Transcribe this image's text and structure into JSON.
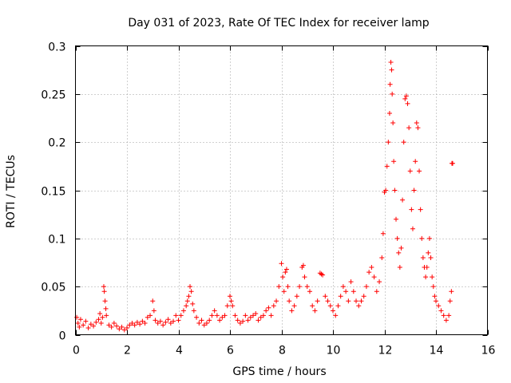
{
  "chart_data": {
    "type": "scatter",
    "title": "Day 031 of 2023, Rate Of TEC Index for receiver lamp",
    "xlabel": "GPS time / hours",
    "ylabel": "ROTI / TECUs",
    "xlim": [
      0,
      16
    ],
    "ylim": [
      0,
      0.3
    ],
    "xticks": [
      0,
      2,
      4,
      6,
      8,
      10,
      12,
      14,
      16
    ],
    "yticks": [
      0,
      0.05,
      0.1,
      0.15,
      0.2,
      0.25,
      0.3
    ],
    "xtick_labels": [
      "0",
      "2",
      "4",
      "6",
      "8",
      "10",
      "12",
      "14",
      "16"
    ],
    "ytick_labels": [
      "0",
      "0.05",
      "0.1",
      "0.15",
      "0.2",
      "0.25",
      "0.3"
    ],
    "grid": true,
    "marker": "+",
    "color": "#ff0000",
    "series": [
      {
        "name": "ROTI",
        "points": [
          [
            0.05,
            0.018
          ],
          [
            0.1,
            0.012
          ],
          [
            0.15,
            0.008
          ],
          [
            0.2,
            0.016
          ],
          [
            0.3,
            0.01
          ],
          [
            0.4,
            0.014
          ],
          [
            0.5,
            0.007
          ],
          [
            0.6,
            0.011
          ],
          [
            0.7,
            0.009
          ],
          [
            0.8,
            0.013
          ],
          [
            0.9,
            0.016
          ],
          [
            0.95,
            0.022
          ],
          [
            1.0,
            0.012
          ],
          [
            1.05,
            0.018
          ],
          [
            1.1,
            0.05
          ],
          [
            1.12,
            0.045
          ],
          [
            1.15,
            0.035
          ],
          [
            1.18,
            0.027
          ],
          [
            1.2,
            0.02
          ],
          [
            1.3,
            0.01
          ],
          [
            1.4,
            0.008
          ],
          [
            1.5,
            0.012
          ],
          [
            1.6,
            0.009
          ],
          [
            1.7,
            0.006
          ],
          [
            1.8,
            0.008
          ],
          [
            1.9,
            0.005
          ],
          [
            2.0,
            0.007
          ],
          [
            2.1,
            0.01
          ],
          [
            2.2,
            0.012
          ],
          [
            2.3,
            0.01
          ],
          [
            2.4,
            0.013
          ],
          [
            2.5,
            0.011
          ],
          [
            2.6,
            0.014
          ],
          [
            2.7,
            0.012
          ],
          [
            2.8,
            0.018
          ],
          [
            2.9,
            0.02
          ],
          [
            3.0,
            0.035
          ],
          [
            3.05,
            0.025
          ],
          [
            3.1,
            0.015
          ],
          [
            3.2,
            0.012
          ],
          [
            3.3,
            0.014
          ],
          [
            3.4,
            0.01
          ],
          [
            3.5,
            0.013
          ],
          [
            3.6,
            0.016
          ],
          [
            3.7,
            0.012
          ],
          [
            3.8,
            0.014
          ],
          [
            3.9,
            0.02
          ],
          [
            4.0,
            0.015
          ],
          [
            4.1,
            0.02
          ],
          [
            4.2,
            0.025
          ],
          [
            4.3,
            0.03
          ],
          [
            4.35,
            0.035
          ],
          [
            4.4,
            0.04
          ],
          [
            4.45,
            0.05
          ],
          [
            4.5,
            0.045
          ],
          [
            4.55,
            0.032
          ],
          [
            4.6,
            0.025
          ],
          [
            4.7,
            0.018
          ],
          [
            4.8,
            0.012
          ],
          [
            4.9,
            0.015
          ],
          [
            5.0,
            0.01
          ],
          [
            5.1,
            0.012
          ],
          [
            5.2,
            0.015
          ],
          [
            5.3,
            0.02
          ],
          [
            5.4,
            0.025
          ],
          [
            5.5,
            0.02
          ],
          [
            5.6,
            0.015
          ],
          [
            5.7,
            0.018
          ],
          [
            5.8,
            0.02
          ],
          [
            5.9,
            0.03
          ],
          [
            6.0,
            0.04
          ],
          [
            6.05,
            0.035
          ],
          [
            6.1,
            0.03
          ],
          [
            6.2,
            0.02
          ],
          [
            6.3,
            0.015
          ],
          [
            6.4,
            0.012
          ],
          [
            6.5,
            0.014
          ],
          [
            6.6,
            0.02
          ],
          [
            6.7,
            0.015
          ],
          [
            6.8,
            0.018
          ],
          [
            6.9,
            0.02
          ],
          [
            7.0,
            0.022
          ],
          [
            7.1,
            0.015
          ],
          [
            7.2,
            0.018
          ],
          [
            7.3,
            0.02
          ],
          [
            7.4,
            0.025
          ],
          [
            7.5,
            0.028
          ],
          [
            7.6,
            0.02
          ],
          [
            7.7,
            0.03
          ],
          [
            7.8,
            0.035
          ],
          [
            7.9,
            0.05
          ],
          [
            8.0,
            0.074
          ],
          [
            8.05,
            0.06
          ],
          [
            8.1,
            0.045
          ],
          [
            8.15,
            0.065
          ],
          [
            8.2,
            0.068
          ],
          [
            8.25,
            0.05
          ],
          [
            8.3,
            0.035
          ],
          [
            8.4,
            0.025
          ],
          [
            8.5,
            0.03
          ],
          [
            8.6,
            0.04
          ],
          [
            8.7,
            0.05
          ],
          [
            8.8,
            0.07
          ],
          [
            8.85,
            0.072
          ],
          [
            8.9,
            0.06
          ],
          [
            9.0,
            0.05
          ],
          [
            9.1,
            0.045
          ],
          [
            9.2,
            0.03
          ],
          [
            9.3,
            0.025
          ],
          [
            9.4,
            0.035
          ],
          [
            9.5,
            0.064
          ],
          [
            9.55,
            0.063
          ],
          [
            9.6,
            0.062
          ],
          [
            9.7,
            0.04
          ],
          [
            9.8,
            0.035
          ],
          [
            9.9,
            0.03
          ],
          [
            10.0,
            0.025
          ],
          [
            10.1,
            0.02
          ],
          [
            10.2,
            0.03
          ],
          [
            10.3,
            0.04
          ],
          [
            10.4,
            0.05
          ],
          [
            10.5,
            0.045
          ],
          [
            10.6,
            0.035
          ],
          [
            10.7,
            0.055
          ],
          [
            10.8,
            0.045
          ],
          [
            10.9,
            0.035
          ],
          [
            11.0,
            0.03
          ],
          [
            11.1,
            0.035
          ],
          [
            11.2,
            0.04
          ],
          [
            11.3,
            0.05
          ],
          [
            11.4,
            0.065
          ],
          [
            11.5,
            0.07
          ],
          [
            11.6,
            0.06
          ],
          [
            11.7,
            0.045
          ],
          [
            11.8,
            0.055
          ],
          [
            11.9,
            0.08
          ],
          [
            11.95,
            0.105
          ],
          [
            12.0,
            0.148
          ],
          [
            12.05,
            0.15
          ],
          [
            12.1,
            0.175
          ],
          [
            12.15,
            0.2
          ],
          [
            12.2,
            0.23
          ],
          [
            12.22,
            0.26
          ],
          [
            12.25,
            0.283
          ],
          [
            12.28,
            0.275
          ],
          [
            12.3,
            0.25
          ],
          [
            12.33,
            0.22
          ],
          [
            12.36,
            0.18
          ],
          [
            12.4,
            0.15
          ],
          [
            12.45,
            0.12
          ],
          [
            12.5,
            0.1
          ],
          [
            12.55,
            0.085
          ],
          [
            12.6,
            0.07
          ],
          [
            12.65,
            0.09
          ],
          [
            12.7,
            0.14
          ],
          [
            12.75,
            0.2
          ],
          [
            12.8,
            0.245
          ],
          [
            12.85,
            0.248
          ],
          [
            12.9,
            0.24
          ],
          [
            12.95,
            0.215
          ],
          [
            13.0,
            0.17
          ],
          [
            13.05,
            0.13
          ],
          [
            13.1,
            0.11
          ],
          [
            13.15,
            0.15
          ],
          [
            13.2,
            0.18
          ],
          [
            13.25,
            0.22
          ],
          [
            13.3,
            0.215
          ],
          [
            13.35,
            0.17
          ],
          [
            13.4,
            0.13
          ],
          [
            13.45,
            0.1
          ],
          [
            13.5,
            0.08
          ],
          [
            13.55,
            0.07
          ],
          [
            13.6,
            0.06
          ],
          [
            13.65,
            0.07
          ],
          [
            13.7,
            0.085
          ],
          [
            13.75,
            0.1
          ],
          [
            13.8,
            0.08
          ],
          [
            13.85,
            0.06
          ],
          [
            13.9,
            0.05
          ],
          [
            13.95,
            0.04
          ],
          [
            14.0,
            0.035
          ],
          [
            14.1,
            0.03
          ],
          [
            14.2,
            0.025
          ],
          [
            14.3,
            0.02
          ],
          [
            14.4,
            0.015
          ],
          [
            14.5,
            0.02
          ],
          [
            14.55,
            0.035
          ],
          [
            14.6,
            0.045
          ],
          [
            14.62,
            0.178
          ],
          [
            14.65,
            0.178
          ]
        ]
      }
    ]
  }
}
